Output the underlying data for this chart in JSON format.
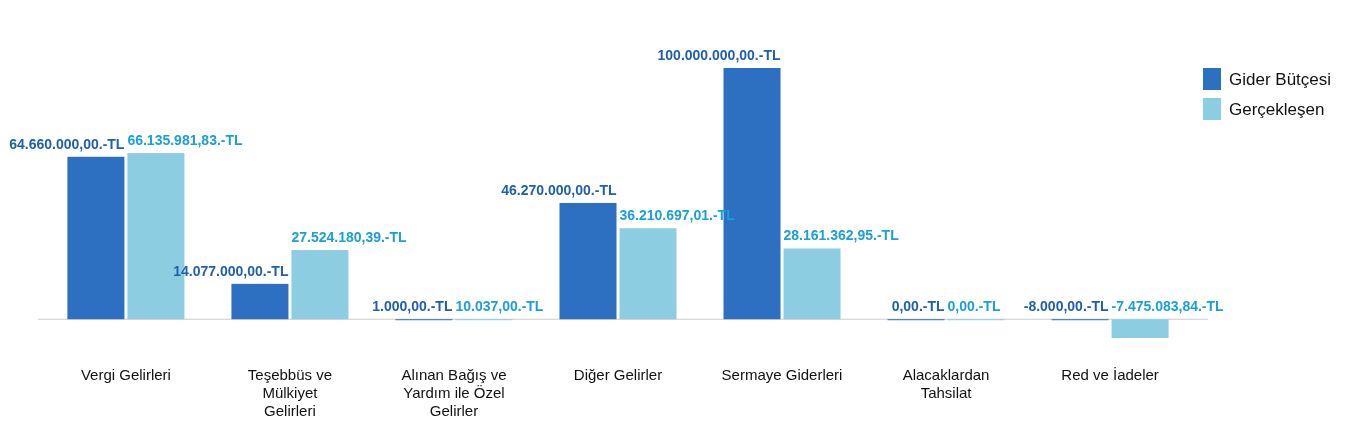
{
  "chart_data": {
    "type": "bar",
    "categories": [
      "Vergi Gelirleri",
      "Teşebbüs ve Mülkiyet Gelirleri",
      "Alınan Bağış ve Yardım ile Özel Gelirler",
      "Diğer Gelirler",
      "Sermaye Giderleri",
      "Alacaklardan Tahsilat",
      "Red ve İadeler"
    ],
    "series": [
      {
        "name": "Gider Bütçesi",
        "color": "#2d6fc0",
        "values": [
          64660000,
          14077000,
          1000,
          46270000,
          100000000,
          0,
          -8000
        ],
        "value_labels": [
          "64.660.000,00.-TL",
          "14.077.000,00.-TL",
          "1.000,00.-TL",
          "46.270.000,00.-TL",
          "100.000.000,00.-TL",
          "0,00.-TL",
          "-8.000,00.-TL"
        ]
      },
      {
        "name": "Gerçekleşen",
        "color": "#8dcde2",
        "values": [
          66135981.83,
          27524180.39,
          10037,
          36210697.01,
          28161362.95,
          0,
          -7475083.84
        ],
        "value_labels": [
          "66.135.981,83.-TL",
          "27.524.180,39.-TL",
          "10.037,00.-TL",
          "36.210.697,01.-TL",
          "28.161.362,95.-TL",
          "0,00.-TL",
          "-7.475.083,84.-TL"
        ]
      }
    ],
    "legend": "top right"
  }
}
